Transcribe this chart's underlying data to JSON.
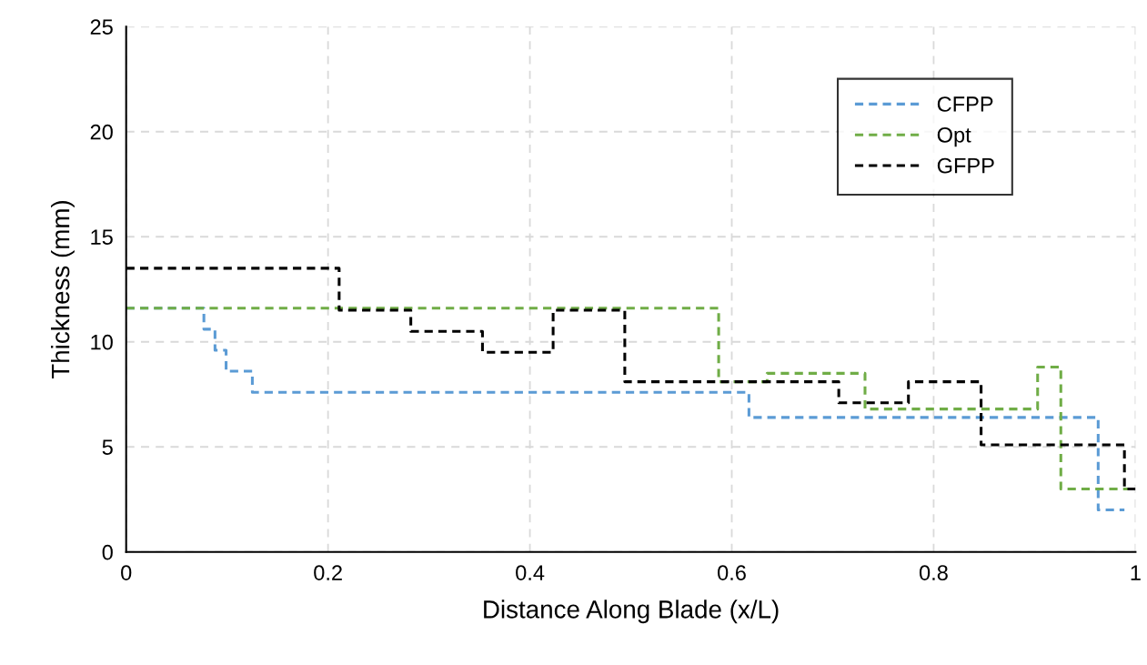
{
  "chart_data": {
    "type": "step",
    "xlabel": "Distance Along Blade (x/L)",
    "ylabel": "Thickness (mm)",
    "xlim": [
      0,
      1
    ],
    "xticks": [
      0,
      0.2,
      0.4,
      0.6,
      0.8,
      1
    ],
    "ylim": [
      0,
      25
    ],
    "yticks": [
      0,
      5,
      10,
      15,
      20,
      25
    ],
    "grid": true,
    "legend": "top right",
    "line_style": "dashed",
    "marker": "none",
    "series": [
      {
        "name": "CFPP",
        "color": "#5b9bd5",
        "x": [
          0,
          0.077,
          0.088,
          0.099,
          0.125,
          0.617,
          0.963,
          0.989
        ],
        "values": [
          11.6,
          10.6,
          9.6,
          8.6,
          7.6,
          6.4,
          2.0,
          2.0
        ]
      },
      {
        "name": "Opt",
        "color": "#70ad47",
        "x": [
          0,
          0.587,
          0.635,
          0.732,
          0.903,
          0.926,
          1.0
        ],
        "values": [
          11.6,
          8.1,
          8.5,
          6.8,
          8.8,
          3.0,
          3.0
        ]
      },
      {
        "name": "GFPP",
        "color": "#000000",
        "x": [
          0,
          0.211,
          0.282,
          0.353,
          0.423,
          0.494,
          0.706,
          0.775,
          0.847,
          0.989,
          1.0
        ],
        "values": [
          13.5,
          11.5,
          10.5,
          9.5,
          11.5,
          8.1,
          7.1,
          8.1,
          5.1,
          3.0,
          3.0
        ]
      }
    ]
  }
}
